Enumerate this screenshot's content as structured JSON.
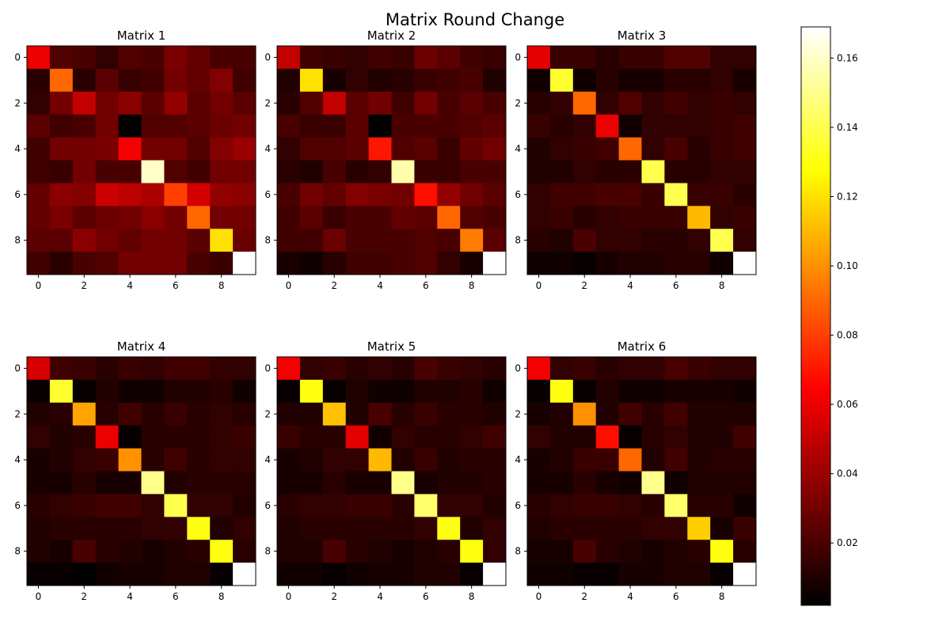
{
  "chart_data": {
    "type": "heatmap",
    "title": "Matrix Round Change",
    "colormap": "hot",
    "colorbar": {
      "vmin": 0.002,
      "vmax": 0.169,
      "ticks": [
        0.02,
        0.04,
        0.06,
        0.08,
        0.1,
        0.12,
        0.14,
        0.16
      ],
      "tick_labels": [
        "0.02",
        "0.04",
        "0.06",
        "0.08",
        "0.10",
        "0.12",
        "0.14",
        "0.16"
      ]
    },
    "axis_ticks": [
      0,
      2,
      4,
      6,
      8
    ],
    "axis_tick_labels": [
      "0",
      "2",
      "4",
      "6",
      "8"
    ],
    "matrices": [
      {
        "title": "Matrix 1",
        "values": [
          [
            0.06,
            0.022,
            0.02,
            0.014,
            0.022,
            0.02,
            0.032,
            0.026,
            0.02,
            0.02
          ],
          [
            0.012,
            0.09,
            0.012,
            0.024,
            0.016,
            0.018,
            0.03,
            0.026,
            0.034,
            0.018
          ],
          [
            0.014,
            0.03,
            0.05,
            0.03,
            0.036,
            0.024,
            0.038,
            0.024,
            0.03,
            0.024
          ],
          [
            0.024,
            0.018,
            0.02,
            0.03,
            0.002,
            0.022,
            0.022,
            0.024,
            0.028,
            0.03
          ],
          [
            0.018,
            0.03,
            0.03,
            0.032,
            0.062,
            0.03,
            0.03,
            0.022,
            0.034,
            0.04
          ],
          [
            0.018,
            0.016,
            0.03,
            0.02,
            0.02,
            0.16,
            0.022,
            0.018,
            0.03,
            0.03
          ],
          [
            0.026,
            0.036,
            0.034,
            0.052,
            0.048,
            0.044,
            0.08,
            0.054,
            0.038,
            0.036
          ],
          [
            0.026,
            0.032,
            0.024,
            0.028,
            0.03,
            0.036,
            0.03,
            0.09,
            0.03,
            0.03
          ],
          [
            0.024,
            0.024,
            0.036,
            0.03,
            0.026,
            0.03,
            0.03,
            0.024,
            0.12,
            0.028
          ],
          [
            0.018,
            0.012,
            0.02,
            0.022,
            0.03,
            0.03,
            0.03,
            0.02,
            0.016,
            0.169
          ]
        ]
      },
      {
        "title": "Matrix 2",
        "values": [
          [
            0.05,
            0.018,
            0.016,
            0.014,
            0.018,
            0.016,
            0.028,
            0.024,
            0.018,
            0.016
          ],
          [
            0.01,
            0.12,
            0.008,
            0.014,
            0.01,
            0.012,
            0.016,
            0.018,
            0.02,
            0.01
          ],
          [
            0.012,
            0.022,
            0.05,
            0.024,
            0.03,
            0.018,
            0.03,
            0.02,
            0.024,
            0.02
          ],
          [
            0.02,
            0.016,
            0.016,
            0.024,
            0.002,
            0.02,
            0.02,
            0.02,
            0.022,
            0.024
          ],
          [
            0.014,
            0.022,
            0.022,
            0.024,
            0.07,
            0.022,
            0.024,
            0.016,
            0.026,
            0.03
          ],
          [
            0.012,
            0.01,
            0.02,
            0.012,
            0.014,
            0.155,
            0.016,
            0.016,
            0.02,
            0.02
          ],
          [
            0.02,
            0.03,
            0.026,
            0.034,
            0.032,
            0.03,
            0.068,
            0.038,
            0.03,
            0.024
          ],
          [
            0.018,
            0.024,
            0.016,
            0.02,
            0.02,
            0.026,
            0.024,
            0.09,
            0.022,
            0.02
          ],
          [
            0.018,
            0.018,
            0.028,
            0.02,
            0.02,
            0.02,
            0.022,
            0.02,
            0.095,
            0.024
          ],
          [
            0.008,
            0.006,
            0.012,
            0.018,
            0.018,
            0.02,
            0.022,
            0.014,
            0.008,
            0.169
          ]
        ]
      },
      {
        "title": "Matrix 3",
        "values": [
          [
            0.058,
            0.016,
            0.016,
            0.012,
            0.016,
            0.016,
            0.022,
            0.022,
            0.014,
            0.014
          ],
          [
            0.006,
            0.135,
            0.006,
            0.012,
            0.008,
            0.008,
            0.012,
            0.012,
            0.014,
            0.008
          ],
          [
            0.012,
            0.014,
            0.09,
            0.014,
            0.022,
            0.014,
            0.018,
            0.014,
            0.016,
            0.014
          ],
          [
            0.016,
            0.012,
            0.014,
            0.06,
            0.006,
            0.014,
            0.014,
            0.014,
            0.016,
            0.018
          ],
          [
            0.01,
            0.014,
            0.016,
            0.018,
            0.09,
            0.014,
            0.02,
            0.012,
            0.016,
            0.018
          ],
          [
            0.01,
            0.01,
            0.014,
            0.012,
            0.012,
            0.14,
            0.012,
            0.012,
            0.014,
            0.014
          ],
          [
            0.014,
            0.018,
            0.018,
            0.02,
            0.02,
            0.016,
            0.14,
            0.016,
            0.016,
            0.012
          ],
          [
            0.014,
            0.016,
            0.012,
            0.014,
            0.016,
            0.016,
            0.016,
            0.11,
            0.014,
            0.016
          ],
          [
            0.012,
            0.01,
            0.02,
            0.014,
            0.014,
            0.012,
            0.012,
            0.014,
            0.14,
            0.014
          ],
          [
            0.006,
            0.006,
            0.004,
            0.008,
            0.01,
            0.01,
            0.012,
            0.012,
            0.006,
            0.169
          ]
        ]
      },
      {
        "title": "Matrix 4",
        "values": [
          [
            0.055,
            0.018,
            0.016,
            0.012,
            0.016,
            0.014,
            0.018,
            0.018,
            0.014,
            0.014
          ],
          [
            0.004,
            0.135,
            0.004,
            0.01,
            0.006,
            0.006,
            0.01,
            0.01,
            0.012,
            0.006
          ],
          [
            0.01,
            0.012,
            0.105,
            0.012,
            0.018,
            0.012,
            0.016,
            0.012,
            0.014,
            0.012
          ],
          [
            0.014,
            0.01,
            0.012,
            0.06,
            0.004,
            0.012,
            0.012,
            0.012,
            0.014,
            0.016
          ],
          [
            0.008,
            0.01,
            0.014,
            0.016,
            0.1,
            0.012,
            0.018,
            0.012,
            0.014,
            0.014
          ],
          [
            0.008,
            0.008,
            0.012,
            0.008,
            0.008,
            0.15,
            0.01,
            0.012,
            0.012,
            0.012
          ],
          [
            0.012,
            0.014,
            0.016,
            0.018,
            0.018,
            0.014,
            0.14,
            0.014,
            0.014,
            0.01
          ],
          [
            0.01,
            0.012,
            0.012,
            0.012,
            0.012,
            0.014,
            0.014,
            0.13,
            0.01,
            0.014
          ],
          [
            0.01,
            0.008,
            0.02,
            0.012,
            0.01,
            0.008,
            0.01,
            0.012,
            0.13,
            0.012
          ],
          [
            0.004,
            0.004,
            0.002,
            0.006,
            0.008,
            0.008,
            0.01,
            0.01,
            0.004,
            0.169
          ]
        ]
      },
      {
        "title": "Matrix 5",
        "values": [
          [
            0.062,
            0.014,
            0.016,
            0.012,
            0.014,
            0.012,
            0.02,
            0.016,
            0.014,
            0.012
          ],
          [
            0.004,
            0.13,
            0.004,
            0.01,
            0.006,
            0.006,
            0.01,
            0.01,
            0.012,
            0.006
          ],
          [
            0.01,
            0.01,
            0.112,
            0.01,
            0.02,
            0.012,
            0.016,
            0.012,
            0.012,
            0.01
          ],
          [
            0.016,
            0.012,
            0.012,
            0.058,
            0.006,
            0.014,
            0.012,
            0.012,
            0.014,
            0.018
          ],
          [
            0.008,
            0.01,
            0.014,
            0.014,
            0.11,
            0.01,
            0.016,
            0.01,
            0.012,
            0.012
          ],
          [
            0.008,
            0.008,
            0.012,
            0.008,
            0.008,
            0.15,
            0.008,
            0.01,
            0.01,
            0.012
          ],
          [
            0.012,
            0.014,
            0.014,
            0.016,
            0.016,
            0.012,
            0.145,
            0.014,
            0.014,
            0.01
          ],
          [
            0.01,
            0.012,
            0.012,
            0.012,
            0.012,
            0.012,
            0.014,
            0.13,
            0.01,
            0.014
          ],
          [
            0.01,
            0.01,
            0.02,
            0.012,
            0.01,
            0.008,
            0.01,
            0.012,
            0.13,
            0.014
          ],
          [
            0.006,
            0.006,
            0.004,
            0.006,
            0.008,
            0.008,
            0.01,
            0.01,
            0.004,
            0.169
          ]
        ]
      },
      {
        "title": "Matrix 6",
        "values": [
          [
            0.062,
            0.014,
            0.016,
            0.012,
            0.014,
            0.014,
            0.02,
            0.016,
            0.014,
            0.014
          ],
          [
            0.004,
            0.13,
            0.004,
            0.01,
            0.006,
            0.006,
            0.008,
            0.008,
            0.008,
            0.006
          ],
          [
            0.008,
            0.01,
            0.1,
            0.01,
            0.018,
            0.012,
            0.018,
            0.01,
            0.01,
            0.01
          ],
          [
            0.014,
            0.01,
            0.01,
            0.068,
            0.004,
            0.012,
            0.014,
            0.01,
            0.01,
            0.018
          ],
          [
            0.008,
            0.01,
            0.016,
            0.016,
            0.09,
            0.01,
            0.018,
            0.01,
            0.012,
            0.012
          ],
          [
            0.008,
            0.008,
            0.012,
            0.008,
            0.006,
            0.15,
            0.006,
            0.01,
            0.01,
            0.01
          ],
          [
            0.012,
            0.014,
            0.016,
            0.016,
            0.014,
            0.012,
            0.145,
            0.012,
            0.012,
            0.006
          ],
          [
            0.01,
            0.012,
            0.012,
            0.012,
            0.012,
            0.014,
            0.014,
            0.115,
            0.008,
            0.016
          ],
          [
            0.008,
            0.008,
            0.02,
            0.012,
            0.01,
            0.008,
            0.01,
            0.012,
            0.13,
            0.012
          ],
          [
            0.006,
            0.006,
            0.004,
            0.004,
            0.008,
            0.008,
            0.01,
            0.01,
            0.004,
            0.169
          ]
        ]
      }
    ]
  }
}
